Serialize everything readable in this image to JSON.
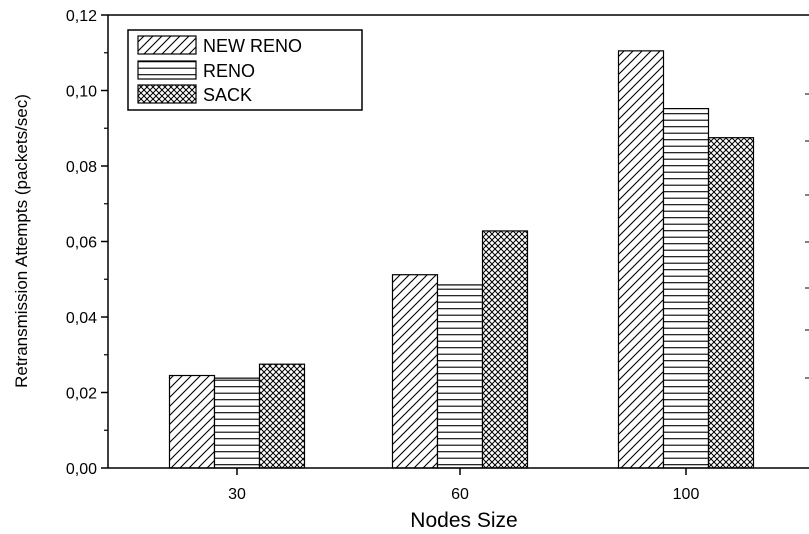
{
  "chart_data": {
    "type": "bar",
    "xlabel": "Nodes Size",
    "ylabel": "Retransmission Attempts (packets/sec)",
    "categories": [
      "30",
      "60",
      "100"
    ],
    "series": [
      {
        "name": "NEW RENO",
        "values": [
          0.0245,
          0.0512,
          0.1105
        ],
        "pattern": "diagonal-hatch"
      },
      {
        "name": "RENO",
        "values": [
          0.0238,
          0.0485,
          0.0952
        ],
        "pattern": "horizontal-lines"
      },
      {
        "name": "SACK",
        "values": [
          0.0275,
          0.0628,
          0.0875
        ],
        "pattern": "crosshatch"
      }
    ],
    "ylim": [
      0,
      0.12
    ],
    "yticks": [
      "0,00",
      "0,02",
      "0,04",
      "0,06",
      "0,08",
      "0,10",
      "0,12"
    ],
    "legend_position": "top-left",
    "grid": false,
    "colors": {
      "stroke": "#000000",
      "background": "#ffffff"
    }
  }
}
